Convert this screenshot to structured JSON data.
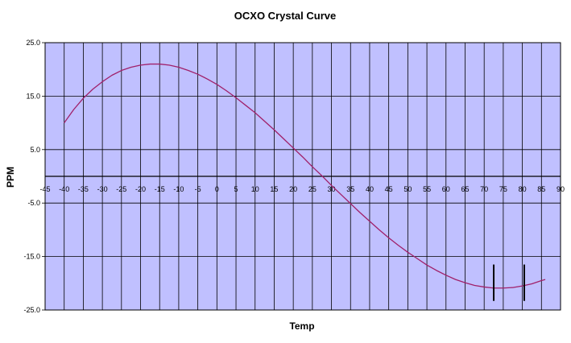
{
  "chart_data": {
    "type": "line",
    "title": "OCXO Crystal Curve",
    "xlabel": "Temp",
    "ylabel": "PPM",
    "xlim": [
      -45,
      90
    ],
    "ylim": [
      -25,
      25
    ],
    "x_ticks": [
      -45,
      -40,
      -35,
      -30,
      -25,
      -20,
      -15,
      -10,
      -5,
      0,
      5,
      10,
      15,
      20,
      25,
      30,
      35,
      40,
      45,
      50,
      55,
      60,
      65,
      70,
      75,
      80,
      85,
      90
    ],
    "x_tick_labels": [
      "-45",
      "-40",
      "-35",
      "-30",
      "-25",
      "-20",
      "-15",
      "-10",
      "-5",
      "0",
      "5",
      "10",
      "15",
      "20",
      "25",
      "30",
      "35",
      "40",
      "45",
      "50",
      "55",
      "60",
      "65",
      "70",
      "75",
      "80",
      "85",
      "90"
    ],
    "y_ticks": [
      25,
      15,
      5,
      -5,
      -15,
      -25
    ],
    "y_tick_labels": [
      "25.0",
      "15.0",
      "5.0",
      "-5.0",
      "-15.0",
      "-25.0"
    ],
    "y_gridlines": [
      25,
      15,
      5,
      0,
      -5,
      -15,
      -25
    ],
    "grid": true,
    "colors": {
      "plot_background": "#c0c0ff",
      "grid": "#000000",
      "series": "#a0206a",
      "marker": "#000000",
      "border": "#000000"
    },
    "series": [
      {
        "x": [
          -40,
          -37.5,
          -35,
          -32.5,
          -30,
          -27.5,
          -25,
          -22.5,
          -20,
          -17.5,
          -15,
          -12.5,
          -10,
          -7.5,
          -5,
          -2.5,
          0,
          2.5,
          5,
          7.5,
          10,
          12.5,
          15,
          17.5,
          20,
          22.5,
          25,
          27.5,
          30,
          32.5,
          35,
          37.5,
          40,
          42.5,
          45,
          47.5,
          50,
          52.5,
          55,
          57.5,
          60,
          62.5,
          65,
          67.5,
          70,
          72.5,
          75,
          77.5,
          80,
          82.5,
          85,
          86
        ],
        "y": [
          10.0,
          12.5,
          14.6,
          16.3,
          17.7,
          18.9,
          19.8,
          20.4,
          20.8,
          21.0,
          21.0,
          20.8,
          20.4,
          19.8,
          19.1,
          18.2,
          17.2,
          16.0,
          14.7,
          13.3,
          11.9,
          10.3,
          8.7,
          7.0,
          5.3,
          3.6,
          1.8,
          0.1,
          -1.7,
          -3.4,
          -5.1,
          -6.8,
          -8.4,
          -10.0,
          -11.5,
          -12.9,
          -14.2,
          -15.4,
          -16.6,
          -17.6,
          -18.5,
          -19.3,
          -19.9,
          -20.4,
          -20.7,
          -20.9,
          -20.9,
          -20.8,
          -20.5,
          -20.1,
          -19.5,
          -19.3
        ]
      }
    ],
    "markers": [
      {
        "x": 72.5,
        "y_range": [
          -16.5,
          -23.3
        ]
      },
      {
        "x": 80.5,
        "y_range": [
          -16.5,
          -23.3
        ]
      }
    ]
  }
}
